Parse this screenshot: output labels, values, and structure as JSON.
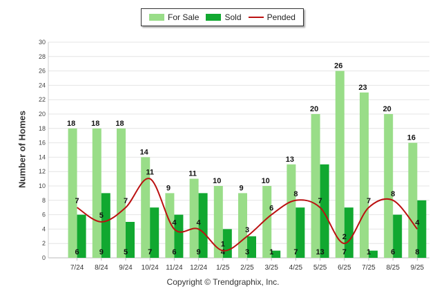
{
  "chart_data": {
    "type": "bar+line",
    "title": "",
    "ylabel": "Number of Homes",
    "xlabel": "",
    "ylim": [
      0,
      30
    ],
    "yticks": [
      0,
      2,
      4,
      6,
      8,
      10,
      12,
      14,
      16,
      18,
      20,
      22,
      24,
      26,
      28,
      30
    ],
    "categories": [
      "7/24",
      "8/24",
      "9/24",
      "10/24",
      "11/24",
      "12/24",
      "1/25",
      "2/25",
      "3/25",
      "4/25",
      "5/25",
      "6/25",
      "7/25",
      "8/25",
      "9/25"
    ],
    "series": [
      {
        "name": "For Sale",
        "kind": "bar",
        "color": "#99dd88",
        "values": [
          18,
          18,
          18,
          14,
          9,
          11,
          10,
          9,
          10,
          13,
          20,
          26,
          23,
          20,
          16
        ]
      },
      {
        "name": "Sold",
        "kind": "bar",
        "color": "#11a830",
        "values": [
          6,
          9,
          5,
          7,
          6,
          9,
          4,
          3,
          1,
          7,
          13,
          7,
          1,
          6,
          8
        ]
      },
      {
        "name": "Pended",
        "kind": "line",
        "color": "#bb1111",
        "values": [
          7,
          5,
          7,
          11,
          4,
          4,
          1,
          3,
          6,
          8,
          7,
          2,
          7,
          8,
          4
        ]
      }
    ],
    "legend": "top-center",
    "grid": true
  },
  "legend": {
    "for_sale": "For Sale",
    "sold": "Sold",
    "pended": "Pended"
  },
  "footer": {
    "copyright": "Copyright © Trendgraphix, Inc."
  }
}
